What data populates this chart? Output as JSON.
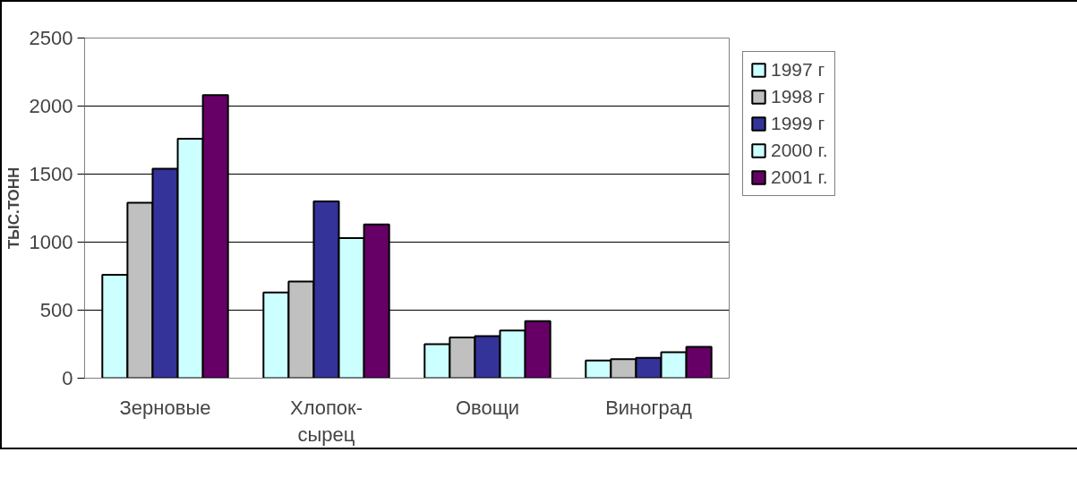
{
  "chart_data": {
    "type": "bar",
    "ylabel": "ТЫС.ТОНН",
    "categories": [
      "Зерновые",
      "Хлопок-\nсырец",
      "Овощи",
      "Виноград"
    ],
    "series": [
      {
        "name": "1997 г",
        "color": "#ccffff",
        "values": [
          760,
          630,
          250,
          130
        ]
      },
      {
        "name": "1998 г",
        "color": "#c0c0c0",
        "values": [
          1290,
          710,
          300,
          140
        ]
      },
      {
        "name": "1999 г",
        "color": "#333399",
        "values": [
          1540,
          1300,
          310,
          150
        ]
      },
      {
        "name": "2000 г.",
        "color": "#ccffff",
        "values": [
          1760,
          1030,
          350,
          190
        ]
      },
      {
        "name": "2001 г.",
        "color": "#660066",
        "values": [
          2080,
          1130,
          420,
          230
        ]
      }
    ],
    "ylim": [
      0,
      2500
    ],
    "yticks": [
      0,
      500,
      1000,
      1500,
      2000,
      2500
    ],
    "grid": "y",
    "legend": "right"
  }
}
